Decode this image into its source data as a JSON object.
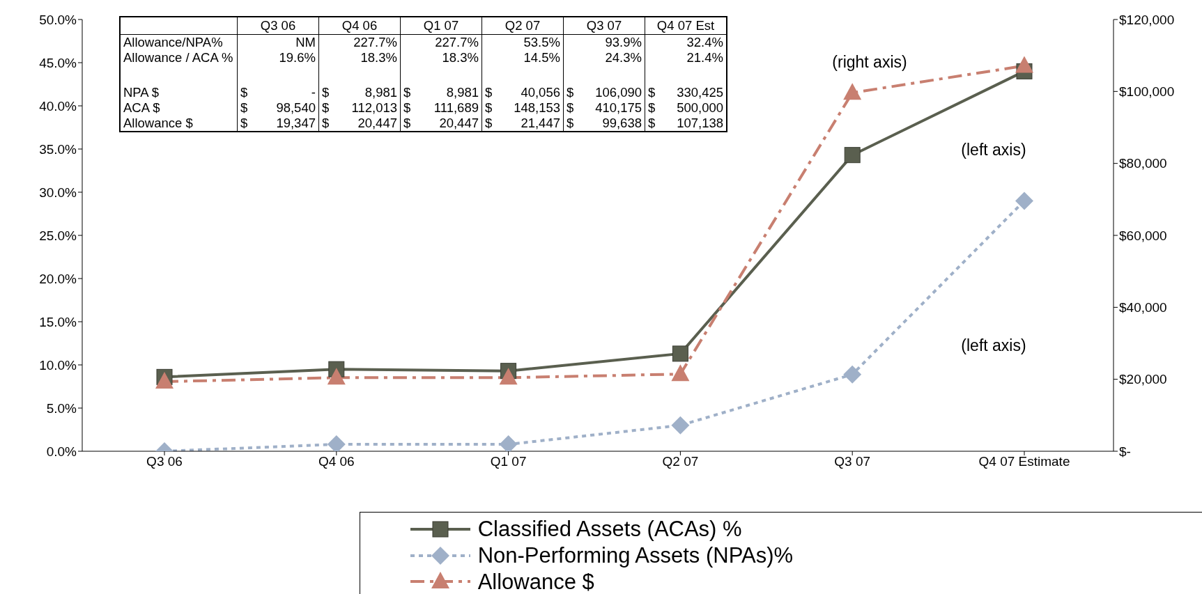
{
  "chart_data": {
    "type": "line",
    "categories": [
      "Q3 06",
      "Q4 06",
      "Q1 07",
      "Q2 07",
      "Q3 07",
      "Q4 07 Estimate"
    ],
    "series": [
      {
        "name": "Classified Assets (ACAs) %",
        "color": "#5a5f4f",
        "values": [
          8.6,
          9.5,
          9.3,
          11.3,
          34.3,
          44.0
        ],
        "marker": "square",
        "line_style": "solid"
      },
      {
        "name": "Non-Performing Assets (NPAs)%",
        "color": "#9fb0c8",
        "values": [
          0,
          0.8,
          0.8,
          3.0,
          8.9,
          29.0
        ],
        "marker": "diamond",
        "line_style": "dotted"
      },
      {
        "name": "Allowance $",
        "color": "#c87f70",
        "values": [
          19347,
          20447,
          20447,
          21447,
          99638,
          107138
        ],
        "marker": "triangle",
        "line_style": "dashed",
        "axis": "y2"
      }
    ],
    "ylim": [
      0,
      50
    ],
    "yticks": [
      {
        "value": 0,
        "label": "0.0%"
      },
      {
        "value": 5,
        "label": "5.0%"
      },
      {
        "value": 10,
        "label": "10.0%"
      },
      {
        "value": 15,
        "label": "15.0%"
      },
      {
        "value": 20,
        "label": "20.0%"
      },
      {
        "value": 25,
        "label": "25.0%"
      },
      {
        "value": 30,
        "label": "30.0%"
      },
      {
        "value": 35,
        "label": "35.0%"
      },
      {
        "value": 40,
        "label": "40.0%"
      },
      {
        "value": 45,
        "label": "45.0%"
      },
      {
        "value": 50,
        "label": "50.0%"
      }
    ],
    "y2lim": [
      0,
      120000
    ],
    "y2ticks": [
      {
        "value": 0,
        "label": "$-"
      },
      {
        "value": 20000,
        "label": "$20,000"
      },
      {
        "value": 40000,
        "label": "$40,000"
      },
      {
        "value": 60000,
        "label": "$60,000"
      },
      {
        "value": 80000,
        "label": "$80,000"
      },
      {
        "value": 100000,
        "label": "$100,000"
      },
      {
        "value": 120000,
        "label": "$120,000"
      }
    ],
    "grid": false,
    "legend": "bottom",
    "annotations": [
      "(right axis)",
      "(left axis)",
      "(left axis)",
      "Q3 06",
      "Q4 06",
      "Q1 07",
      "Q2 07",
      "Q3 07",
      "Q4 07 Est",
      "Allowance/NPA%",
      "NM",
      "227.7%",
      "227.7%",
      "53.5%",
      "93.9%",
      "32.4%",
      "Allowance / ACA %",
      "19.6%",
      "18.3%",
      "18.3%",
      "14.5%",
      "24.3%",
      "21.4%",
      "NPA $",
      "$ -",
      "$ 8,981",
      "$ 8,981",
      "$ 40,056",
      "$ 106,090",
      "$ 330,425",
      "ACA $",
      "$ 98,540",
      "$ 112,013",
      "$ 111,689",
      "$ 148,153",
      "$ 410,175",
      "$ 500,000",
      "Allowance $",
      "$ 19,347",
      "$ 20,447",
      "$ 20,447",
      "$ 21,447",
      "$ 99,638",
      "$ 107,138"
    ]
  }
}
